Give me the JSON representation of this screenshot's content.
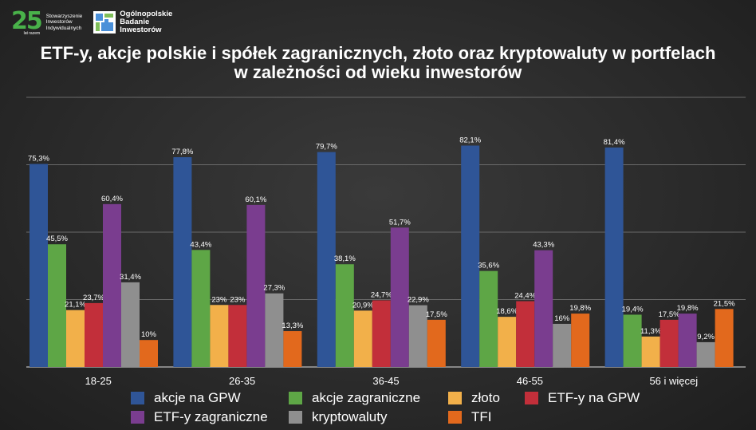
{
  "logos": {
    "sii_number": "25",
    "sii_subtitle": "lat razem",
    "sii_line1": "Stowarzyszenie",
    "sii_line2": "Inwestorów",
    "sii_line3": "Indywidualnych",
    "obi_line1": "Ogólnopolskie",
    "obi_line2": "Badanie",
    "obi_line3": "Inwestorów"
  },
  "chart_data": {
    "type": "bar",
    "title_line1": "ETF-y, akcje polskie i spółek zagranicznych, złoto oraz kryptowaluty w portfelach",
    "title_line2": "w zależności od wieku inwestorów",
    "categories": [
      "18-25",
      "26-35",
      "36-45",
      "46-55",
      "56 i więcej"
    ],
    "ylim": [
      0,
      100
    ],
    "grid": true,
    "legend_position": "bottom",
    "series": [
      {
        "name": "akcje na GPW",
        "color": "#2f5597",
        "values": [
          75.3,
          77.8,
          79.7,
          82.1,
          81.4
        ],
        "labels": [
          "75,3%",
          "77,8%",
          "79,7%",
          "82,1%",
          "81,4%"
        ]
      },
      {
        "name": "akcje zagraniczne",
        "color": "#5ea646",
        "values": [
          45.5,
          43.4,
          38.1,
          35.6,
          19.4
        ],
        "labels": [
          "45,5%",
          "43,4%",
          "38,1%",
          "35,6%",
          "19,4%"
        ]
      },
      {
        "name": "złoto",
        "color": "#f2b04a",
        "values": [
          21.1,
          23,
          20.9,
          18.6,
          11.3
        ],
        "labels": [
          "21,1%",
          "23%",
          "20,9%",
          "18,6%",
          "11,3%"
        ]
      },
      {
        "name": "ETF-y na GPW",
        "color": "#c22f3a",
        "values": [
          23.7,
          23,
          24.7,
          24.4,
          17.5
        ],
        "labels": [
          "23,7%",
          "23%",
          "24,7%",
          "24,4%",
          "17,5%"
        ]
      },
      {
        "name": "ETF-y zagraniczne",
        "color": "#7a3d8f",
        "values": [
          60.4,
          60.1,
          51.7,
          43.3,
          19.8
        ],
        "labels": [
          "60,4%",
          "60,1%",
          "51,7%",
          "43,3%",
          "19,8%"
        ]
      },
      {
        "name": "kryptowaluty",
        "color": "#8f8f8f",
        "values": [
          31.4,
          27.3,
          22.9,
          16,
          9.2
        ],
        "labels": [
          "31,4%",
          "27,3%",
          "22,9%",
          "16%",
          "9,2%"
        ]
      },
      {
        "name": "TFI",
        "color": "#e2691d",
        "values": [
          10,
          13.3,
          17.5,
          19.8,
          21.5
        ],
        "labels": [
          "10%",
          "13,3%",
          "17,5%",
          "19,8%",
          "21,5%"
        ]
      }
    ]
  }
}
